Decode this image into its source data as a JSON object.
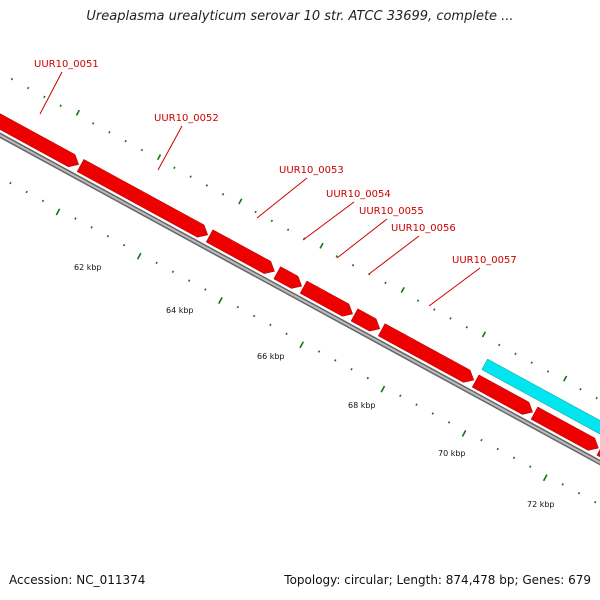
{
  "title": "Ureaplasma urealyticum serovar 10 str. ATCC 33699, complete ...",
  "footer": {
    "accession": "Accession: NC_011374",
    "summary": "Topology: circular; Length: 874,478 bp; Genes: 679"
  },
  "colors": {
    "forward_gene": "#ee0000",
    "reverse_gene": "#00e5ee",
    "backbone": "#888888",
    "ticks": "#117711",
    "label": "#cc0000"
  },
  "gene_labels": [
    "UUR10_0051",
    "UUR10_0052",
    "UUR10_0053",
    "UUR10_0054",
    "UUR10_0055",
    "UUR10_0056",
    "UUR10_0057"
  ],
  "scale_labels": [
    "62 kbp",
    "64 kbp",
    "66 kbp",
    "68 kbp",
    "70 kbp",
    "72 kbp"
  ]
}
